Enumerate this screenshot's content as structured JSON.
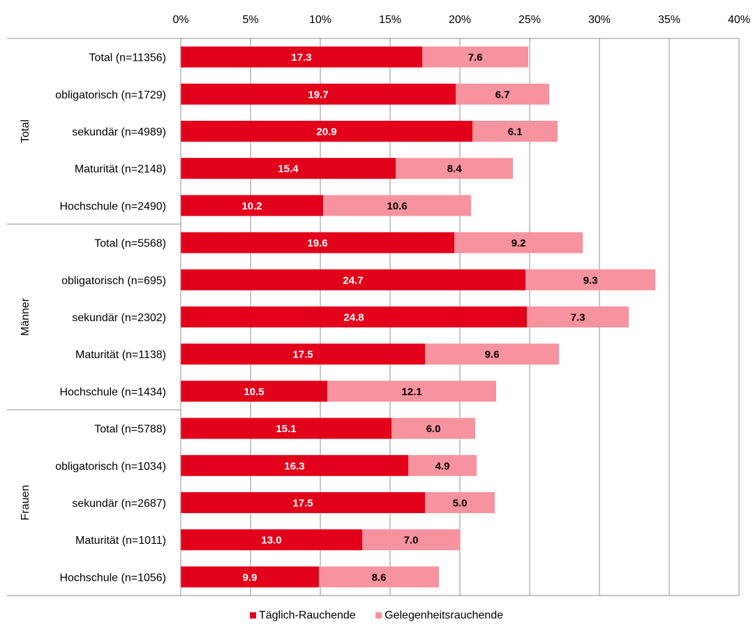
{
  "chart_data": {
    "type": "bar",
    "orientation": "horizontal",
    "stacked": true,
    "title": "",
    "xlabel": "",
    "ylabel": "",
    "xlim": [
      0,
      40
    ],
    "x_ticks": [
      "0%",
      "5%",
      "10%",
      "15%",
      "20%",
      "25%",
      "30%",
      "35%",
      "40%"
    ],
    "grid": true,
    "legend_position": "bottom",
    "colors": {
      "taeglich": "#e2001a",
      "gelegenheit": "#f7939e"
    },
    "groups": [
      {
        "label": "Total",
        "categories": [
          "Total (n=11356)",
          "obligatorisch (n=1729)",
          "sekundär (n=4989)",
          "Maturität (n=2148)",
          "Hochschule (n=2490)"
        ]
      },
      {
        "label": "Männer",
        "categories": [
          "Total (n=5568)",
          "obligatorisch (n=695)",
          "sekundär (n=2302)",
          "Maturität (n=1138)",
          "Hochschule (n=1434)"
        ]
      },
      {
        "label": "Frauen",
        "categories": [
          "Total (n=5788)",
          "obligatorisch (n=1034)",
          "sekundär (n=2687)",
          "Maturität (n=1011)",
          "Hochschule (n=1056)"
        ]
      }
    ],
    "series": [
      {
        "name": "Täglich-Rauchende",
        "values": [
          17.3,
          19.7,
          20.9,
          15.4,
          10.2,
          19.6,
          24.7,
          24.8,
          17.5,
          10.5,
          15.1,
          16.3,
          17.5,
          13.0,
          9.9
        ],
        "labels": [
          "17.3",
          "19.7",
          "20.9",
          "15.4",
          "10.2",
          "19.6",
          "24.7",
          "24.8",
          "17.5",
          "10.5",
          "15.1",
          "16.3",
          "17.5",
          "13.0",
          "9.9"
        ]
      },
      {
        "name": "Gelegenheitsrauchende",
        "values": [
          7.6,
          6.7,
          6.1,
          8.4,
          10.6,
          9.2,
          9.3,
          7.3,
          9.6,
          12.1,
          6.0,
          4.9,
          5.0,
          7.0,
          8.6
        ],
        "labels": [
          "7.6",
          "6.7",
          "6.1",
          "8.4",
          "10.6",
          "9.2",
          "9.3",
          "7.3",
          "9.6",
          "12.1",
          "6.0",
          "4.9",
          "5.0",
          "7.0",
          "8.6"
        ]
      }
    ]
  }
}
